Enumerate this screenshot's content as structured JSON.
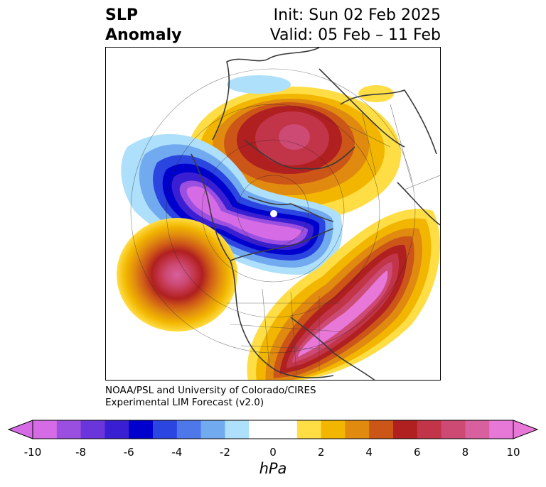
{
  "header": {
    "variable": "SLP",
    "type": "Anomaly",
    "init": "Init: Sun 02 Feb 2025",
    "valid": "Valid: 05 Feb – 11 Feb"
  },
  "map": {
    "projection": "north-polar-stereographic",
    "features": [
      {
        "label": "positive-anomaly-north-atlantic-eurasia",
        "sign": "positive",
        "peak_hpa": 10
      },
      {
        "label": "negative-anomaly-alaska-canada",
        "sign": "negative",
        "peak_hpa": -10
      },
      {
        "label": "positive-anomaly-north-pacific",
        "sign": "positive",
        "peak_hpa": 9
      },
      {
        "label": "positive-anomaly-north-america-siberia",
        "sign": "positive",
        "peak_hpa": 10
      }
    ]
  },
  "credits": {
    "line1": "NOAA/PSL and University of Colorado/CIRES",
    "line2": "Experimental LIM Forecast (v2.0)"
  },
  "colorbar": {
    "min": -10,
    "max": 10,
    "step": 1,
    "extend": "both",
    "tick_labels": [
      "-10",
      "-8",
      "-6",
      "-4",
      "-2",
      "0",
      "2",
      "4",
      "6",
      "8",
      "10"
    ],
    "unit": "hPa",
    "colors": [
      "#d56ce5",
      "#9b4fe0",
      "#6a36dc",
      "#3a1fd2",
      "#0000cc",
      "#2a45e0",
      "#4e78ea",
      "#72aaf0",
      "#aee0fb",
      "#ffffff",
      "#ffffff",
      "#ffdd44",
      "#f2b600",
      "#e08a10",
      "#cc5518",
      "#b02020",
      "#c23448",
      "#cc4a74",
      "#d8609e",
      "#e878d8"
    ]
  }
}
